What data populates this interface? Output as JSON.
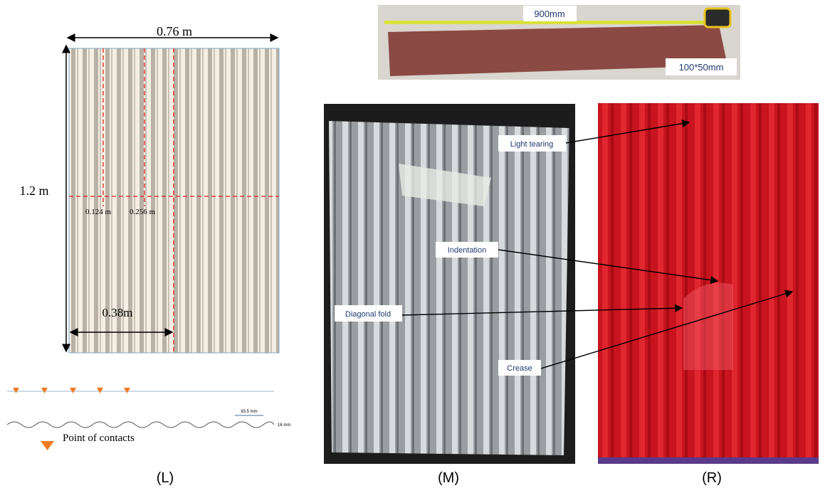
{
  "left": {
    "width_label": "0.76 m",
    "height_label": "1.2 m",
    "dim_a": "0.124 m",
    "dim_b": "0.256 m",
    "half_label": "0.38m",
    "pitch_label": "83.5 mm",
    "depth_label": "16 mm",
    "legend": "Point of contacts",
    "caption": "(L)"
  },
  "top_photo": {
    "length_label": "900mm",
    "section_label": "100*50mm"
  },
  "middle": {
    "callouts": [
      "Light tearing",
      "Indentation",
      "Diagonal fold",
      "Crease"
    ],
    "caption": "(M)"
  },
  "right": {
    "caption": "(R)"
  }
}
